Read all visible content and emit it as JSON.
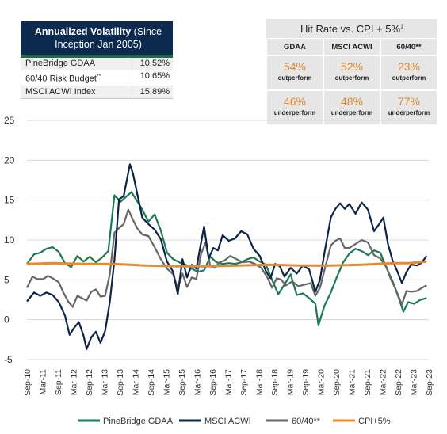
{
  "volatility_table": {
    "title_bold": "Annualized Volatility",
    "title_rest": " (Since Inception Jan 2005)",
    "rows": [
      {
        "name": "PineBridge GDAA",
        "sup": "",
        "value": "10.52%"
      },
      {
        "name": "60/40 Risk Budget",
        "sup": "**",
        "value": "10.65%"
      },
      {
        "name": "MSCI ACWI Index",
        "sup": "",
        "value": "15.89%"
      }
    ]
  },
  "hit_rate_table": {
    "title": "Hit Rate vs. CPI + 5%",
    "title_sup": "1",
    "columns": [
      "GDAA",
      "MSCI ACWI",
      "60/40**"
    ],
    "outperform": [
      "54%",
      "52%",
      "23%"
    ],
    "underperform": [
      "46%",
      "48%",
      "77%"
    ],
    "out_label": "outperform",
    "under_label": "underperform"
  },
  "colors": {
    "gdaa": "#1b7a52",
    "acwi": "#0b2447",
    "sixty_forty": "#666666",
    "cpi": "#e8892b",
    "pct": "#e0892c"
  },
  "chart_data": {
    "type": "line",
    "title": "",
    "xlabel": "",
    "ylabel": "",
    "ylim": [
      -5,
      25
    ],
    "yticks": [
      -5,
      0,
      5,
      10,
      15,
      20,
      25
    ],
    "xlim": [
      2010.67,
      2023.67
    ],
    "xtick_labels": [
      "Sep-10",
      "Mar-11",
      "Sep-11",
      "Mar-12",
      "Sep-12",
      "Mar-13",
      "Sep-13",
      "Mar-14",
      "Sep-14",
      "Mar-15",
      "Sep-15",
      "Mar-16",
      "Sep-16",
      "Mar-17",
      "Sep-17",
      "Mar-18",
      "Sep-18",
      "Mar-19",
      "Sep-19",
      "Mar-20",
      "Sep-20",
      "Mar-21",
      "Sep-21",
      "Mar-22",
      "Sep-22",
      "Mar-23",
      "Sep-23"
    ],
    "legend_position": "bottom",
    "grid": "horizontal",
    "series": [
      {
        "name": "PineBridge GDAA",
        "color_key": "gdaa",
        "points": [
          [
            2010.67,
            7.0
          ],
          [
            2010.9,
            8.2
          ],
          [
            2011.1,
            8.4
          ],
          [
            2011.3,
            8.9
          ],
          [
            2011.5,
            9.1
          ],
          [
            2011.7,
            8.5
          ],
          [
            2011.9,
            7.1
          ],
          [
            2012.1,
            6.6
          ],
          [
            2012.3,
            8.0
          ],
          [
            2012.5,
            7.3
          ],
          [
            2012.7,
            7.9
          ],
          [
            2012.9,
            7.2
          ],
          [
            2013.1,
            7.8
          ],
          [
            2013.3,
            8.6
          ],
          [
            2013.5,
            15.6
          ],
          [
            2013.7,
            14.8
          ],
          [
            2013.9,
            15.5
          ],
          [
            2014.05,
            16.0
          ],
          [
            2014.2,
            15.1
          ],
          [
            2014.4,
            13.8
          ],
          [
            2014.6,
            12.3
          ],
          [
            2014.8,
            13.2
          ],
          [
            2015.0,
            11.2
          ],
          [
            2015.2,
            8.4
          ],
          [
            2015.4,
            7.6
          ],
          [
            2015.6,
            7.2
          ],
          [
            2015.8,
            6.9
          ],
          [
            2016.0,
            6.4
          ],
          [
            2016.2,
            6.0
          ],
          [
            2016.4,
            6.2
          ],
          [
            2016.6,
            7.9
          ],
          [
            2016.8,
            7.2
          ],
          [
            2017.0,
            7.0
          ],
          [
            2017.2,
            7.1
          ],
          [
            2017.4,
            7.0
          ],
          [
            2017.6,
            7.2
          ],
          [
            2017.8,
            7.6
          ],
          [
            2018.0,
            7.8
          ],
          [
            2018.2,
            7.3
          ],
          [
            2018.4,
            6.9
          ],
          [
            2018.6,
            5.0
          ],
          [
            2018.8,
            3.2
          ],
          [
            2019.0,
            4.4
          ],
          [
            2019.2,
            5.7
          ],
          [
            2019.4,
            3.1
          ],
          [
            2019.6,
            3.3
          ],
          [
            2019.8,
            2.7
          ],
          [
            2020.0,
            2.0
          ],
          [
            2020.1,
            -0.7
          ],
          [
            2020.3,
            1.8
          ],
          [
            2020.5,
            3.4
          ],
          [
            2020.7,
            5.4
          ],
          [
            2020.9,
            7.2
          ],
          [
            2021.1,
            8.3
          ],
          [
            2021.3,
            8.9
          ],
          [
            2021.5,
            8.6
          ],
          [
            2021.7,
            8.1
          ],
          [
            2021.9,
            8.7
          ],
          [
            2022.1,
            8.4
          ],
          [
            2022.3,
            6.5
          ],
          [
            2022.5,
            4.8
          ],
          [
            2022.7,
            2.7
          ],
          [
            2022.85,
            1.0
          ],
          [
            2023.0,
            2.2
          ],
          [
            2023.2,
            2.0
          ],
          [
            2023.4,
            2.5
          ],
          [
            2023.6,
            2.7
          ]
        ]
      },
      {
        "name": "MSCI ACWI",
        "color_key": "acwi",
        "points": [
          [
            2010.67,
            2.3
          ],
          [
            2010.9,
            3.4
          ],
          [
            2011.1,
            3.0
          ],
          [
            2011.3,
            3.4
          ],
          [
            2011.5,
            3.1
          ],
          [
            2011.7,
            2.2
          ],
          [
            2011.9,
            0.5
          ],
          [
            2012.05,
            -1.9
          ],
          [
            2012.2,
            -1.0
          ],
          [
            2012.35,
            -0.3
          ],
          [
            2012.5,
            -2.0
          ],
          [
            2012.6,
            -3.7
          ],
          [
            2012.75,
            -2.2
          ],
          [
            2012.9,
            -1.5
          ],
          [
            2013.05,
            -2.9
          ],
          [
            2013.2,
            -1.4
          ],
          [
            2013.35,
            2.2
          ],
          [
            2013.5,
            7.5
          ],
          [
            2013.65,
            15.1
          ],
          [
            2013.8,
            15.5
          ],
          [
            2014.0,
            19.5
          ],
          [
            2014.1,
            18.3
          ],
          [
            2014.25,
            15.6
          ],
          [
            2014.4,
            12.8
          ],
          [
            2014.6,
            12.0
          ],
          [
            2014.8,
            11.3
          ],
          [
            2015.0,
            10.1
          ],
          [
            2015.2,
            7.3
          ],
          [
            2015.4,
            6.0
          ],
          [
            2015.55,
            3.2
          ],
          [
            2015.7,
            7.6
          ],
          [
            2015.85,
            5.3
          ],
          [
            2016.0,
            6.9
          ],
          [
            2016.15,
            6.4
          ],
          [
            2016.3,
            9.6
          ],
          [
            2016.4,
            11.7
          ],
          [
            2016.55,
            7.7
          ],
          [
            2016.7,
            9.0
          ],
          [
            2016.85,
            8.7
          ],
          [
            2017.0,
            10.6
          ],
          [
            2017.2,
            9.9
          ],
          [
            2017.4,
            10.2
          ],
          [
            2017.6,
            11.1
          ],
          [
            2017.8,
            10.7
          ],
          [
            2018.0,
            8.9
          ],
          [
            2018.2,
            8.0
          ],
          [
            2018.4,
            6.1
          ],
          [
            2018.55,
            5.2
          ],
          [
            2018.7,
            7.0
          ],
          [
            2018.85,
            6.7
          ],
          [
            2019.0,
            5.4
          ],
          [
            2019.2,
            6.5
          ],
          [
            2019.4,
            5.8
          ],
          [
            2019.6,
            6.8
          ],
          [
            2019.8,
            6.3
          ],
          [
            2020.0,
            3.5
          ],
          [
            2020.15,
            5.0
          ],
          [
            2020.3,
            8.5
          ],
          [
            2020.5,
            12.8
          ],
          [
            2020.65,
            13.9
          ],
          [
            2020.8,
            14.6
          ],
          [
            2020.95,
            13.9
          ],
          [
            2021.1,
            14.5
          ],
          [
            2021.3,
            13.3
          ],
          [
            2021.5,
            14.7
          ],
          [
            2021.7,
            13.8
          ],
          [
            2021.9,
            11.1
          ],
          [
            2022.1,
            12.2
          ],
          [
            2022.2,
            12.8
          ],
          [
            2022.35,
            9.5
          ],
          [
            2022.5,
            7.4
          ],
          [
            2022.65,
            6.1
          ],
          [
            2022.8,
            4.6
          ],
          [
            2022.95,
            6.0
          ],
          [
            2023.1,
            6.9
          ],
          [
            2023.3,
            6.8
          ],
          [
            2023.45,
            7.2
          ],
          [
            2023.6,
            8.0
          ]
        ]
      },
      {
        "name": "60/40**",
        "color_key": "sixty_forty",
        "points": [
          [
            2010.67,
            4.0
          ],
          [
            2010.85,
            5.4
          ],
          [
            2011.0,
            5.1
          ],
          [
            2011.2,
            5.1
          ],
          [
            2011.35,
            5.5
          ],
          [
            2011.5,
            5.2
          ],
          [
            2011.7,
            4.7
          ],
          [
            2011.85,
            3.4
          ],
          [
            2012.0,
            2.3
          ],
          [
            2012.15,
            1.6
          ],
          [
            2012.3,
            3.0
          ],
          [
            2012.45,
            2.7
          ],
          [
            2012.6,
            2.4
          ],
          [
            2012.75,
            3.5
          ],
          [
            2012.9,
            3.8
          ],
          [
            2013.05,
            2.9
          ],
          [
            2013.2,
            3.0
          ],
          [
            2013.35,
            5.7
          ],
          [
            2013.5,
            10.9
          ],
          [
            2013.65,
            11.5
          ],
          [
            2013.8,
            12.0
          ],
          [
            2013.95,
            13.8
          ],
          [
            2014.1,
            12.5
          ],
          [
            2014.25,
            11.4
          ],
          [
            2014.4,
            10.7
          ],
          [
            2014.6,
            10.5
          ],
          [
            2014.8,
            9.1
          ],
          [
            2015.0,
            7.6
          ],
          [
            2015.2,
            6.4
          ],
          [
            2015.4,
            5.7
          ],
          [
            2015.55,
            3.9
          ],
          [
            2015.7,
            5.8
          ],
          [
            2015.85,
            4.1
          ],
          [
            2016.0,
            5.3
          ],
          [
            2016.15,
            5.1
          ],
          [
            2016.3,
            8.2
          ],
          [
            2016.45,
            9.7
          ],
          [
            2016.6,
            6.7
          ],
          [
            2016.75,
            6.5
          ],
          [
            2016.9,
            7.2
          ],
          [
            2017.05,
            7.4
          ],
          [
            2017.25,
            8.0
          ],
          [
            2017.45,
            7.6
          ],
          [
            2017.65,
            7.2
          ],
          [
            2017.85,
            7.3
          ],
          [
            2018.05,
            7.0
          ],
          [
            2018.25,
            6.5
          ],
          [
            2018.45,
            5.3
          ],
          [
            2018.6,
            4.0
          ],
          [
            2018.75,
            5.2
          ],
          [
            2018.9,
            5.0
          ],
          [
            2019.05,
            4.3
          ],
          [
            2019.25,
            4.8
          ],
          [
            2019.45,
            4.2
          ],
          [
            2019.65,
            4.4
          ],
          [
            2019.85,
            4.6
          ],
          [
            2020.0,
            3.0
          ],
          [
            2020.15,
            4.0
          ],
          [
            2020.3,
            6.3
          ],
          [
            2020.5,
            9.3
          ],
          [
            2020.65,
            9.9
          ],
          [
            2020.8,
            10.2
          ],
          [
            2020.95,
            9.0
          ],
          [
            2021.1,
            9.0
          ],
          [
            2021.3,
            9.5
          ],
          [
            2021.5,
            10.0
          ],
          [
            2021.7,
            9.7
          ],
          [
            2021.9,
            8.1
          ],
          [
            2022.1,
            7.7
          ],
          [
            2022.3,
            6.6
          ],
          [
            2022.45,
            5.0
          ],
          [
            2022.6,
            3.8
          ],
          [
            2022.8,
            1.9
          ],
          [
            2022.95,
            3.6
          ],
          [
            2023.1,
            3.5
          ],
          [
            2023.3,
            3.6
          ],
          [
            2023.45,
            4.0
          ],
          [
            2023.6,
            4.3
          ]
        ]
      },
      {
        "name": "CPI+5%",
        "color_key": "cpi",
        "points": [
          [
            2010.67,
            7.0
          ],
          [
            2011.5,
            7.1
          ],
          [
            2012.5,
            7.0
          ],
          [
            2013.5,
            7.0
          ],
          [
            2014.5,
            6.8
          ],
          [
            2015.5,
            6.7
          ],
          [
            2016.5,
            6.7
          ],
          [
            2017.5,
            6.8
          ],
          [
            2018.5,
            6.9
          ],
          [
            2019.5,
            6.8
          ],
          [
            2020.5,
            6.8
          ],
          [
            2021.5,
            6.9
          ],
          [
            2022.5,
            7.1
          ],
          [
            2023.0,
            7.1
          ],
          [
            2023.6,
            7.3
          ]
        ]
      }
    ]
  }
}
